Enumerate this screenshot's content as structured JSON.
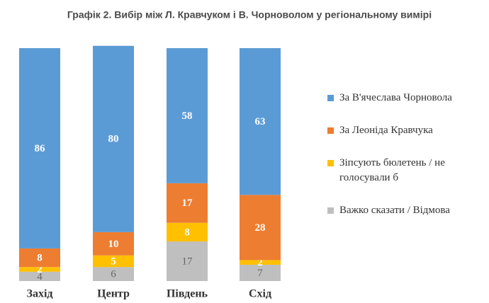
{
  "chart_data": {
    "type": "stacked-bar",
    "title": "Графік 2. Вибір між Л. Кравчуком і В. Чорноволом у регіональному вимірі",
    "categories": [
      "Захід",
      "Центр",
      "Південь",
      "Схід"
    ],
    "series": [
      {
        "name": "За В'ячеслава Чорновола",
        "color": "#5b9bd5",
        "values": [
          86,
          80,
          58,
          63
        ]
      },
      {
        "name": "За Леоніда Кравчука",
        "color": "#ed7d31",
        "values": [
          8,
          10,
          17,
          28
        ]
      },
      {
        "name": "Зіпсують бюлетень / не голосували б",
        "color": "#ffc000",
        "values": [
          2,
          5,
          8,
          2
        ]
      },
      {
        "name": "Важко сказати / Відмова",
        "color": "#bfbfbf",
        "values": [
          4,
          6,
          17,
          7
        ]
      }
    ],
    "legend": "right"
  }
}
